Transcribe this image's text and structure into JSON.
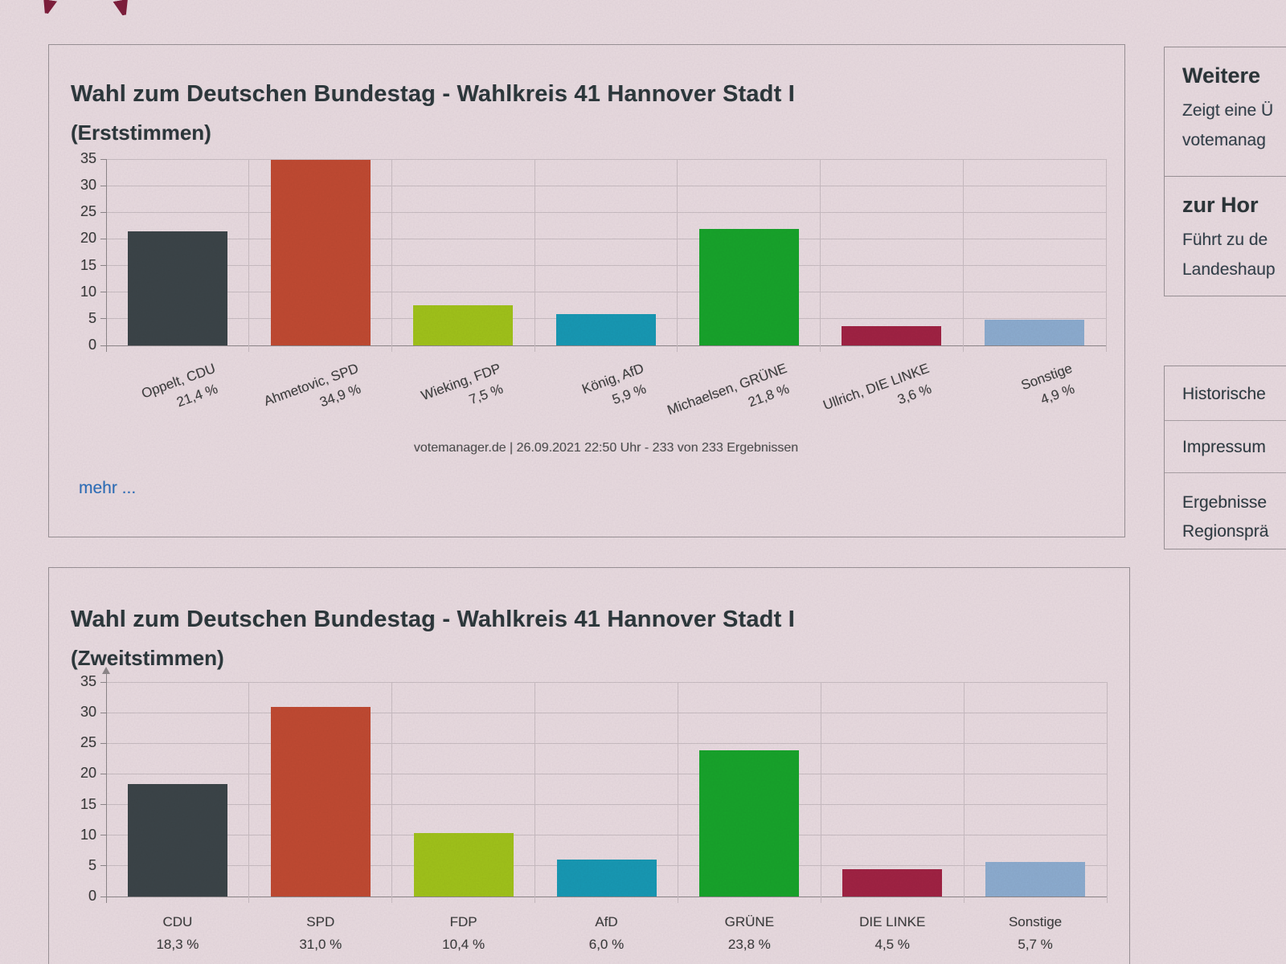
{
  "colors": {
    "background": "#e9dce1",
    "card_border": "#9a9397",
    "grid": "#c9bec3",
    "axis": "#8d878a",
    "title_text": "#2d383c",
    "link_blue": "#2b6fbd",
    "logo_red": "#7e1e3c"
  },
  "charts": [
    {
      "title": "Wahl zum Deutschen Bundestag - Wahlkreis 41 Hannover Stadt I",
      "subtitle": "(Erststimmen)",
      "caption": "votemanager.de | 26.09.2021 22:50 Uhr - 233 von 233 Ergebnissen",
      "more_label": "mehr ..."
    },
    {
      "title": "Wahl zum Deutschen Bundestag - Wahlkreis 41 Hannover Stadt I",
      "subtitle": "(Zweitstimmen)"
    }
  ],
  "chart_data": [
    {
      "type": "bar",
      "title": "Wahl zum Deutschen Bundestag - Wahlkreis 41 Hannover Stadt I (Erststimmen)",
      "categories": [
        "Oppelt, CDU",
        "Ahmetovic, SPD",
        "Wieking, FDP",
        "König, AfD",
        "Michaelsen, GRÜNE",
        "Ullrich, DIE LINKE",
        "Sonstige"
      ],
      "values": [
        21.4,
        34.9,
        7.5,
        5.9,
        21.8,
        3.6,
        4.9
      ],
      "value_labels": [
        "21,4 %",
        "34,9 %",
        "7,5 %",
        "5,9 %",
        "21,8 %",
        "3,6 %",
        "4,9 %"
      ],
      "bar_colors": [
        "#3b4448",
        "#c04a32",
        "#a0c31a",
        "#1799b4",
        "#17a42b",
        "#a02243",
        "#8cadd0"
      ],
      "ylim": [
        0,
        35
      ],
      "yticks": [
        0,
        5,
        10,
        15,
        20,
        25,
        30,
        35
      ],
      "grid": true,
      "xlabel_rotation": -20,
      "legend": "none",
      "caption": "votemanager.de | 26.09.2021 22:50 Uhr - 233 von 233 Ergebnissen"
    },
    {
      "type": "bar",
      "title": "Wahl zum Deutschen Bundestag - Wahlkreis 41 Hannover Stadt I (Zweitstimmen)",
      "categories": [
        "CDU",
        "SPD",
        "FDP",
        "AfD",
        "GRÜNE",
        "DIE LINKE",
        "Sonstige"
      ],
      "values": [
        18.3,
        31.0,
        10.4,
        6.0,
        23.8,
        4.5,
        5.7
      ],
      "value_labels": [
        "18,3 %",
        "31,0 %",
        "10,4 %",
        "6,0 %",
        "23,8 %",
        "4,5 %",
        "5,7 %"
      ],
      "bar_colors": [
        "#3b4448",
        "#c04a32",
        "#a0c31a",
        "#1799b4",
        "#17a42b",
        "#a02243",
        "#8cadd0"
      ],
      "ylim": [
        0,
        35
      ],
      "yticks": [
        0,
        5,
        10,
        15,
        20,
        25,
        30,
        35
      ],
      "grid": true,
      "xlabel_rotation": 0,
      "legend": "none"
    }
  ],
  "sidebar": {
    "box1": {
      "sections": [
        {
          "heading": "Weitere",
          "body": [
            "Zeigt eine Ü",
            "votemanag"
          ]
        },
        {
          "heading": "zur Hor",
          "body": [
            "Führt zu de",
            "Landeshaup"
          ]
        }
      ]
    },
    "box2": {
      "links": [
        [
          "Historische"
        ],
        [
          "Impressum"
        ],
        [
          "Ergebnisse",
          "Regionsprä"
        ]
      ]
    }
  }
}
